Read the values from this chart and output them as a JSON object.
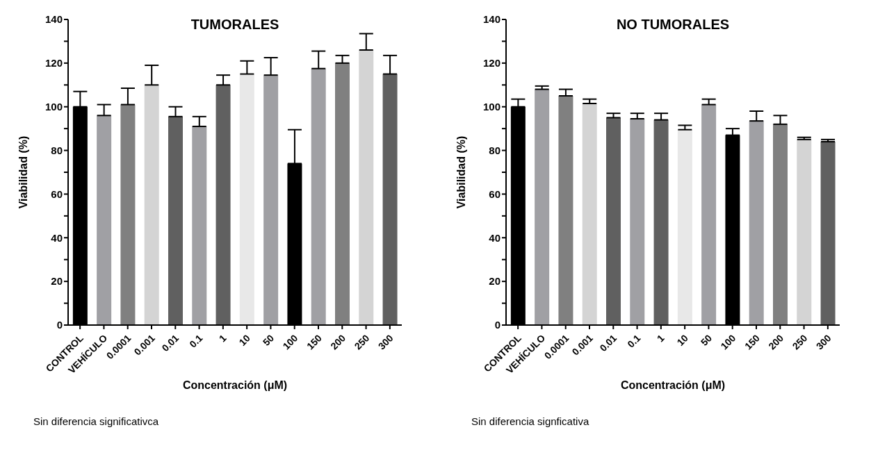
{
  "chart_data": [
    {
      "type": "bar",
      "title": "TUMORALES",
      "xlabel": "Concentración (μM)",
      "ylabel": "Viabilidad (%)",
      "categories": [
        "CONTROL",
        "VEHÍCULO",
        "0.0001",
        "0.001",
        "0.01",
        "0.1",
        "1",
        "10",
        "50",
        "100",
        "150",
        "200",
        "250",
        "300"
      ],
      "values": [
        100,
        96,
        101,
        110,
        95.5,
        91,
        110,
        115,
        114.5,
        74,
        117.5,
        120,
        126,
        115
      ],
      "errors": [
        [
          100,
          107
        ],
        [
          96,
          101
        ],
        [
          101,
          108.5
        ],
        [
          110,
          119
        ],
        [
          95.5,
          100
        ],
        [
          91,
          95.5
        ],
        [
          110,
          114.5
        ],
        [
          115,
          121
        ],
        [
          114.5,
          122.5
        ],
        [
          74,
          89.5
        ],
        [
          117.5,
          125.5
        ],
        [
          120,
          123.5
        ],
        [
          126,
          133.5
        ],
        [
          115,
          123.5
        ]
      ],
      "colors": [
        "#000000",
        "#a0a0a4",
        "#808080",
        "#d4d4d4",
        "#606060",
        "#a0a0a4",
        "#606060",
        "#e8e8e8",
        "#a0a0a4",
        "#000000",
        "#a0a0a4",
        "#808080",
        "#d4d4d4",
        "#606060"
      ],
      "ylim": [
        0,
        140
      ],
      "yticks": [
        0,
        {
          "value": 10,
          "label": null
        },
        20,
        {
          "value": 30,
          "label": null
        },
        40,
        {
          "value": 50,
          "label": null
        },
        60,
        {
          "value": 70,
          "label": null
        },
        80,
        {
          "value": 90,
          "label": null
        },
        100,
        {
          "value": 110,
          "label": null
        },
        120,
        {
          "value": 130,
          "label": null
        },
        140
      ],
      "grid": false,
      "legend": false,
      "annotations": [
        "Sin diferencia significativca"
      ]
    },
    {
      "type": "bar",
      "title": "NO TUMORALES",
      "xlabel": "Concentración (μM)",
      "ylabel": "Viabilidad (%)",
      "categories": [
        "CONTROL",
        "VEHÍCULO",
        "0.0001",
        "0.001",
        "0.01",
        "0.1",
        "1",
        "10",
        "50",
        "100",
        "150",
        "200",
        "250",
        "300"
      ],
      "values": [
        100,
        108,
        105,
        101.5,
        95,
        94.5,
        94,
        89.5,
        101,
        87,
        93.5,
        92,
        85,
        84
      ],
      "errors": [
        [
          100,
          103.5
        ],
        [
          108,
          109.5
        ],
        [
          105,
          108
        ],
        [
          101.5,
          103.5
        ],
        [
          95,
          97
        ],
        [
          94.5,
          97
        ],
        [
          94,
          97
        ],
        [
          89.5,
          91.5
        ],
        [
          101,
          103.5
        ],
        [
          87,
          90
        ],
        [
          93.5,
          98
        ],
        [
          92,
          96
        ],
        [
          85,
          86
        ],
        [
          84,
          85
        ]
      ],
      "colors": [
        "#000000",
        "#a0a0a4",
        "#808080",
        "#d4d4d4",
        "#606060",
        "#a0a0a4",
        "#606060",
        "#e8e8e8",
        "#a0a0a4",
        "#000000",
        "#a0a0a4",
        "#808080",
        "#d4d4d4",
        "#606060"
      ],
      "ylim": [
        0,
        140
      ],
      "yticks": [
        0,
        {
          "value": 10,
          "label": null
        },
        20,
        {
          "value": 30,
          "label": null
        },
        40,
        {
          "value": 50,
          "label": null
        },
        60,
        {
          "value": 70,
          "label": null
        },
        80,
        {
          "value": 90,
          "label": null
        },
        100,
        {
          "value": 110,
          "label": null
        },
        120,
        {
          "value": 130,
          "label": null
        },
        140
      ],
      "grid": false,
      "legend": false,
      "annotations": [
        "Sin diferencia signficativa"
      ]
    }
  ]
}
